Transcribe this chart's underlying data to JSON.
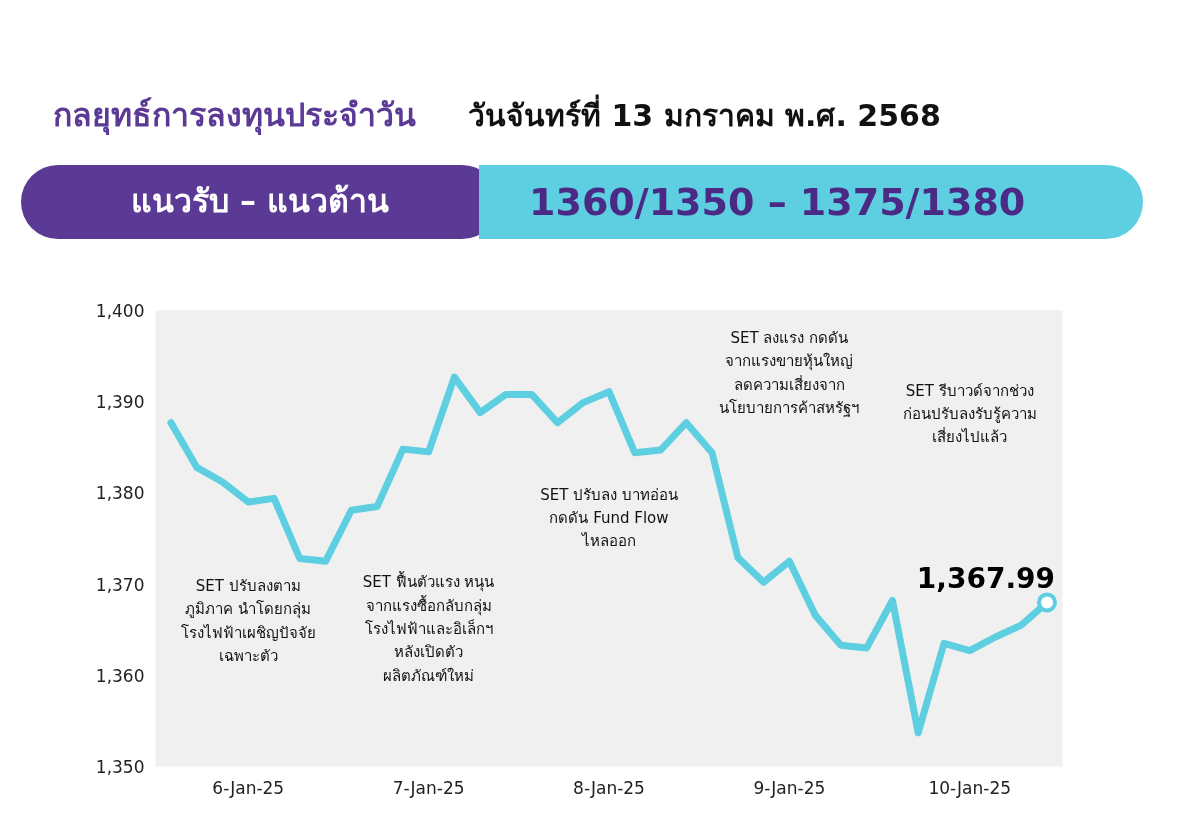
{
  "chart_data": {
    "type": "line",
    "title": "กลยุทธ์การลงทุนประจำวัน",
    "subtitle": "วันจันทร์ที่ 13 มกราคม พ.ศ. 2568",
    "annotations": [
      "แนวรับ – แนวต้าน",
      "1360/1350 – 1375/1380",
      "SET ปรับลงตาม\nภูมิภาค นำโดยกลุ่ม\nโรงไฟฟ้าเผชิญปัจจัย\nเฉพาะตัว",
      "SET ฟื้นตัวแรง หนุน\nจากแรงซื้อกลับกลุ่ม\nโรงไฟฟ้าและอิเล็กฯ\nหลังเปิดตัว\nผลิตภัณฑ์ใหม่",
      "SET ปรับลง บาทอ่อน\nกดดัน Fund Flow\nไหลออก",
      "SET ลงแรง กดดัน\nจากแรงขายหุ้นใหญ่\nลดความเสี่ยงจาก\nนโยบายการค้าสหรัฐฯ",
      "SET รีบาวด์จากช่วง\nก่อนปรับลงรับรู้ความ\nเสี่ยงไปแล้ว"
    ],
    "categories": [
      null,
      null,
      null,
      "6-Jan-25",
      null,
      null,
      null,
      null,
      null,
      null,
      "7-Jan-25",
      null,
      null,
      null,
      null,
      null,
      null,
      "8-Jan-25",
      null,
      null,
      null,
      null,
      null,
      null,
      "9-Jan-25",
      null,
      null,
      null,
      null,
      null,
      null,
      "10-Jan-25",
      null,
      null,
      null
    ],
    "series": [
      {
        "color": "#5ecfe0",
        "values": [
          1387.7,
          1382.8,
          1381.2,
          1379.0,
          1379.4,
          1372.8,
          1372.5,
          1378.1,
          1378.5,
          1384.8,
          1384.5,
          1392.7,
          1388.8,
          1390.8,
          1390.8,
          1387.7,
          1389.9,
          1391.1,
          1384.4,
          1384.7,
          1387.7,
          1384.4,
          1372.9,
          1370.2,
          1372.5,
          1366.6,
          1363.3,
          1363.0,
          1368.2,
          1353.7,
          1363.5,
          1362.7,
          1364.2,
          1365.5,
          1367.99
        ],
        "value_labels": [
          null,
          null,
          null,
          null,
          null,
          null,
          null,
          null,
          null,
          null,
          null,
          null,
          null,
          null,
          null,
          null,
          null,
          null,
          null,
          null,
          null,
          null,
          null,
          null,
          null,
          null,
          null,
          null,
          null,
          null,
          null,
          null,
          null,
          null,
          "1,367.99"
        ]
      }
    ],
    "ylim": [
      1350,
      1400
    ],
    "yticks": [
      {
        "value": 1350,
        "label": "1,350"
      },
      {
        "value": 1360,
        "label": "1,360"
      },
      {
        "value": 1370,
        "label": "1,370"
      },
      {
        "value": 1380,
        "label": "1,380"
      },
      {
        "value": 1390,
        "label": "1,390"
      },
      {
        "value": 1400,
        "label": "1,400"
      }
    ],
    "grid": false
  }
}
